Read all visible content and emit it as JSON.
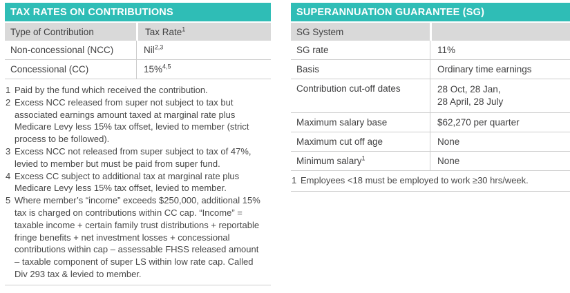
{
  "accent_color": "#2fbdb6",
  "header_row_color": "#d9d9d9",
  "border_color": "#cccccc",
  "left_table": {
    "title": "TAX RATES ON CONTRIBUTIONS",
    "header": {
      "col1": "Type of Contribution",
      "col2": "Tax Rate",
      "col2_sup": "1"
    },
    "rows": [
      {
        "label": "Non-concessional (NCC)",
        "value": "Nil",
        "value_sup": "2,3"
      },
      {
        "label": "Concessional (CC)",
        "value": "15%",
        "value_sup": "4,5"
      }
    ],
    "footnotes": [
      {
        "num": "1",
        "text": "Paid by the fund which received the contribution."
      },
      {
        "num": "2",
        "text": "Excess NCC released from super not subject to tax but associated earnings amount taxed at marginal rate plus Medicare Levy less 15% tax offset, levied to member (strict process to be followed)."
      },
      {
        "num": "3",
        "text": "Excess NCC not released from super subject to tax of 47%, levied to member but must be paid from super fund."
      },
      {
        "num": "4",
        "text": "Excess CC subject to additional tax at marginal rate plus Medicare Levy less 15% tax offset, levied to member."
      },
      {
        "num": "5",
        "text": "Where member’s “income” exceeds $250,000, additional 15% tax is charged on contributions within CC cap. “Income” = taxable income + certain family trust distributions + reportable fringe benefits + net investment losses + concessional contributions within cap – assessable FHSS released amount – taxable component of super LS within low rate cap. Called Div 293 tax & levied to member."
      }
    ]
  },
  "right_table": {
    "title": "SUPERANNUATION GUARANTEE (SG)",
    "header": {
      "col1": "SG System",
      "col2": ""
    },
    "rows": [
      {
        "label": "SG rate",
        "label_sup": "",
        "value": "11%"
      },
      {
        "label": "Basis",
        "label_sup": "",
        "value": "Ordinary time earnings"
      },
      {
        "label": "Contribution cut-off dates",
        "label_sup": "",
        "value": "28 Oct, 28 Jan,\n28 April, 28 July"
      },
      {
        "label": "Maximum salary base",
        "label_sup": "",
        "value": "$62,270 per quarter"
      },
      {
        "label": "Maximum cut off age",
        "label_sup": "",
        "value": "None"
      },
      {
        "label": "Minimum salary",
        "label_sup": "1",
        "value": "None"
      }
    ],
    "footnotes": [
      {
        "num": "1",
        "text": "Employees <18 must be employed to work ≥30 hrs/week."
      }
    ]
  }
}
